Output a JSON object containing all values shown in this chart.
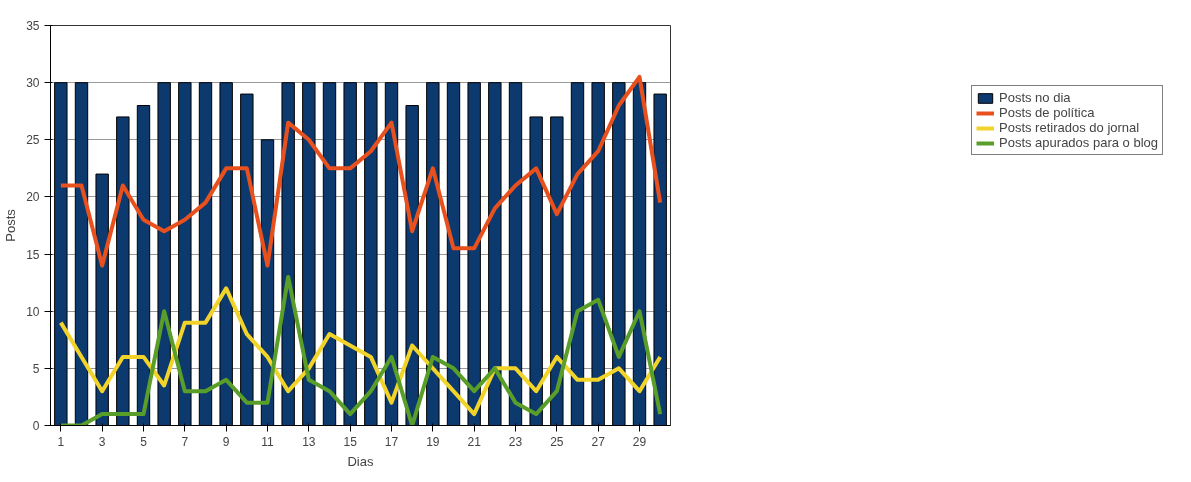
{
  "chart_data": {
    "type": "bar",
    "xlabel": "Dias",
    "ylabel": "Posts",
    "x": [
      1,
      2,
      3,
      4,
      5,
      6,
      7,
      8,
      9,
      10,
      11,
      12,
      13,
      14,
      15,
      16,
      17,
      18,
      19,
      20,
      21,
      22,
      23,
      24,
      25,
      26,
      27,
      28,
      29,
      30
    ],
    "xlim": [
      0.5,
      30.5
    ],
    "xticks": [
      1,
      3,
      5,
      7,
      9,
      11,
      13,
      15,
      17,
      19,
      21,
      23,
      25,
      27,
      29
    ],
    "ylim": [
      0,
      35
    ],
    "yticks": [
      0,
      5,
      10,
      15,
      20,
      25,
      30,
      35
    ],
    "grid": "y",
    "legend": "right",
    "series": [
      {
        "name": "Posts no dia",
        "color": "#0d3a6e",
        "values": [
          30,
          30,
          22,
          27,
          28,
          30,
          30,
          30,
          30,
          29,
          25,
          30,
          30,
          30,
          30,
          30,
          30,
          28,
          30,
          30,
          30,
          30,
          30,
          27,
          27,
          30,
          30,
          30,
          30,
          29
        ]
      },
      {
        "name": "Posts de política",
        "type": "line",
        "color": "#e8501e",
        "values": [
          21,
          21,
          14,
          21,
          18,
          17,
          18,
          19.5,
          22.5,
          22.5,
          14,
          26.5,
          25,
          22.5,
          22.5,
          24,
          26.5,
          17,
          22.5,
          15.5,
          15.5,
          19,
          21,
          22.5,
          18.5,
          22,
          24,
          28,
          30.5,
          19.5
        ]
      },
      {
        "name": "Posts retirados do jornal",
        "type": "line",
        "color": "#f2d32a",
        "values": [
          9,
          6,
          3,
          6,
          6,
          3.5,
          9,
          9,
          12,
          8,
          6,
          3,
          5,
          8,
          7,
          6,
          2,
          7,
          5,
          3,
          1,
          5,
          5,
          3,
          6,
          4,
          4,
          5,
          3,
          6
        ]
      },
      {
        "name": "Posts apurados para o blog",
        "type": "line",
        "color": "#5a9e2a",
        "values": [
          0,
          0,
          1,
          1,
          1,
          10,
          3,
          3,
          4,
          2,
          2,
          13,
          4,
          3,
          1,
          3,
          6,
          0,
          6,
          5,
          3,
          5,
          2,
          1,
          3,
          10,
          11,
          6,
          10,
          1
        ]
      }
    ]
  }
}
